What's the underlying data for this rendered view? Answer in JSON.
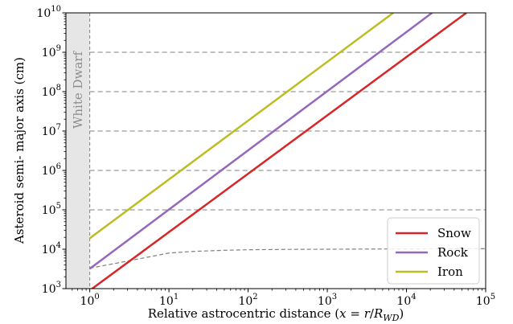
{
  "chart_data": {
    "type": "line",
    "title": "",
    "xlabel": "Relative astrocentric distance (",
    "xlabel_math": {
      "x": "x",
      "eq": " = ",
      "r": "r",
      "slash": "/",
      "R": "R",
      "sub": "WD",
      "close": ")"
    },
    "ylabel": "Asteroid semi- major axis  (cm)",
    "x_scale": "log",
    "y_scale": "log",
    "xlim": [
      0.5,
      100000
    ],
    "ylim": [
      1000,
      10000000000
    ],
    "x_ticks": [
      {
        "value": 1,
        "base": "10",
        "exp": "0"
      },
      {
        "value": 10,
        "base": "10",
        "exp": "1"
      },
      {
        "value": 100,
        "base": "10",
        "exp": "2"
      },
      {
        "value": 1000,
        "base": "10",
        "exp": "3"
      },
      {
        "value": 10000,
        "base": "10",
        "exp": "4"
      },
      {
        "value": 100000,
        "base": "10",
        "exp": "5"
      }
    ],
    "y_ticks": [
      {
        "value": 1000,
        "base": "10",
        "exp": "3"
      },
      {
        "value": 10000,
        "base": "10",
        "exp": "4"
      },
      {
        "value": 100000,
        "base": "10",
        "exp": "5"
      },
      {
        "value": 1000000,
        "base": "10",
        "exp": "6"
      },
      {
        "value": 10000000,
        "base": "10",
        "exp": "7"
      },
      {
        "value": 100000000,
        "base": "10",
        "exp": "8"
      },
      {
        "value": 1000000000,
        "base": "10",
        "exp": "9"
      },
      {
        "value": 10000000000,
        "base": "10",
        "exp": "10"
      }
    ],
    "h_gridlines": [
      100000,
      1000000,
      10000000,
      100000000,
      1000000000
    ],
    "white_dwarf_region": {
      "x_range": [
        0.5,
        1
      ],
      "label": "White Dwarf",
      "color": "#e6e6e6"
    },
    "series": [
      {
        "name": "Snow",
        "color": "#d62728",
        "x": [
          1,
          57000
        ],
        "y": [
          900,
          10000000000
        ]
      },
      {
        "name": "Rock",
        "color": "#9467bd",
        "x": [
          1,
          21000
        ],
        "y": [
          3200,
          10000000000
        ]
      },
      {
        "name": "Iron",
        "color": "#bcbd22",
        "x": [
          1,
          6800
        ],
        "y": [
          19000,
          10000000000
        ]
      }
    ],
    "reference_curve": {
      "style": "dashed",
      "color": "#808080",
      "x": [
        1,
        3,
        10,
        20,
        50,
        100,
        300,
        1000,
        10000,
        100000
      ],
      "y": [
        3300,
        5000,
        8000,
        8800,
        9400,
        9700,
        9900,
        10000,
        10200,
        10300
      ]
    },
    "legend": {
      "placement": "bottom-right",
      "entries": [
        "Snow",
        "Rock",
        "Iron"
      ]
    }
  }
}
